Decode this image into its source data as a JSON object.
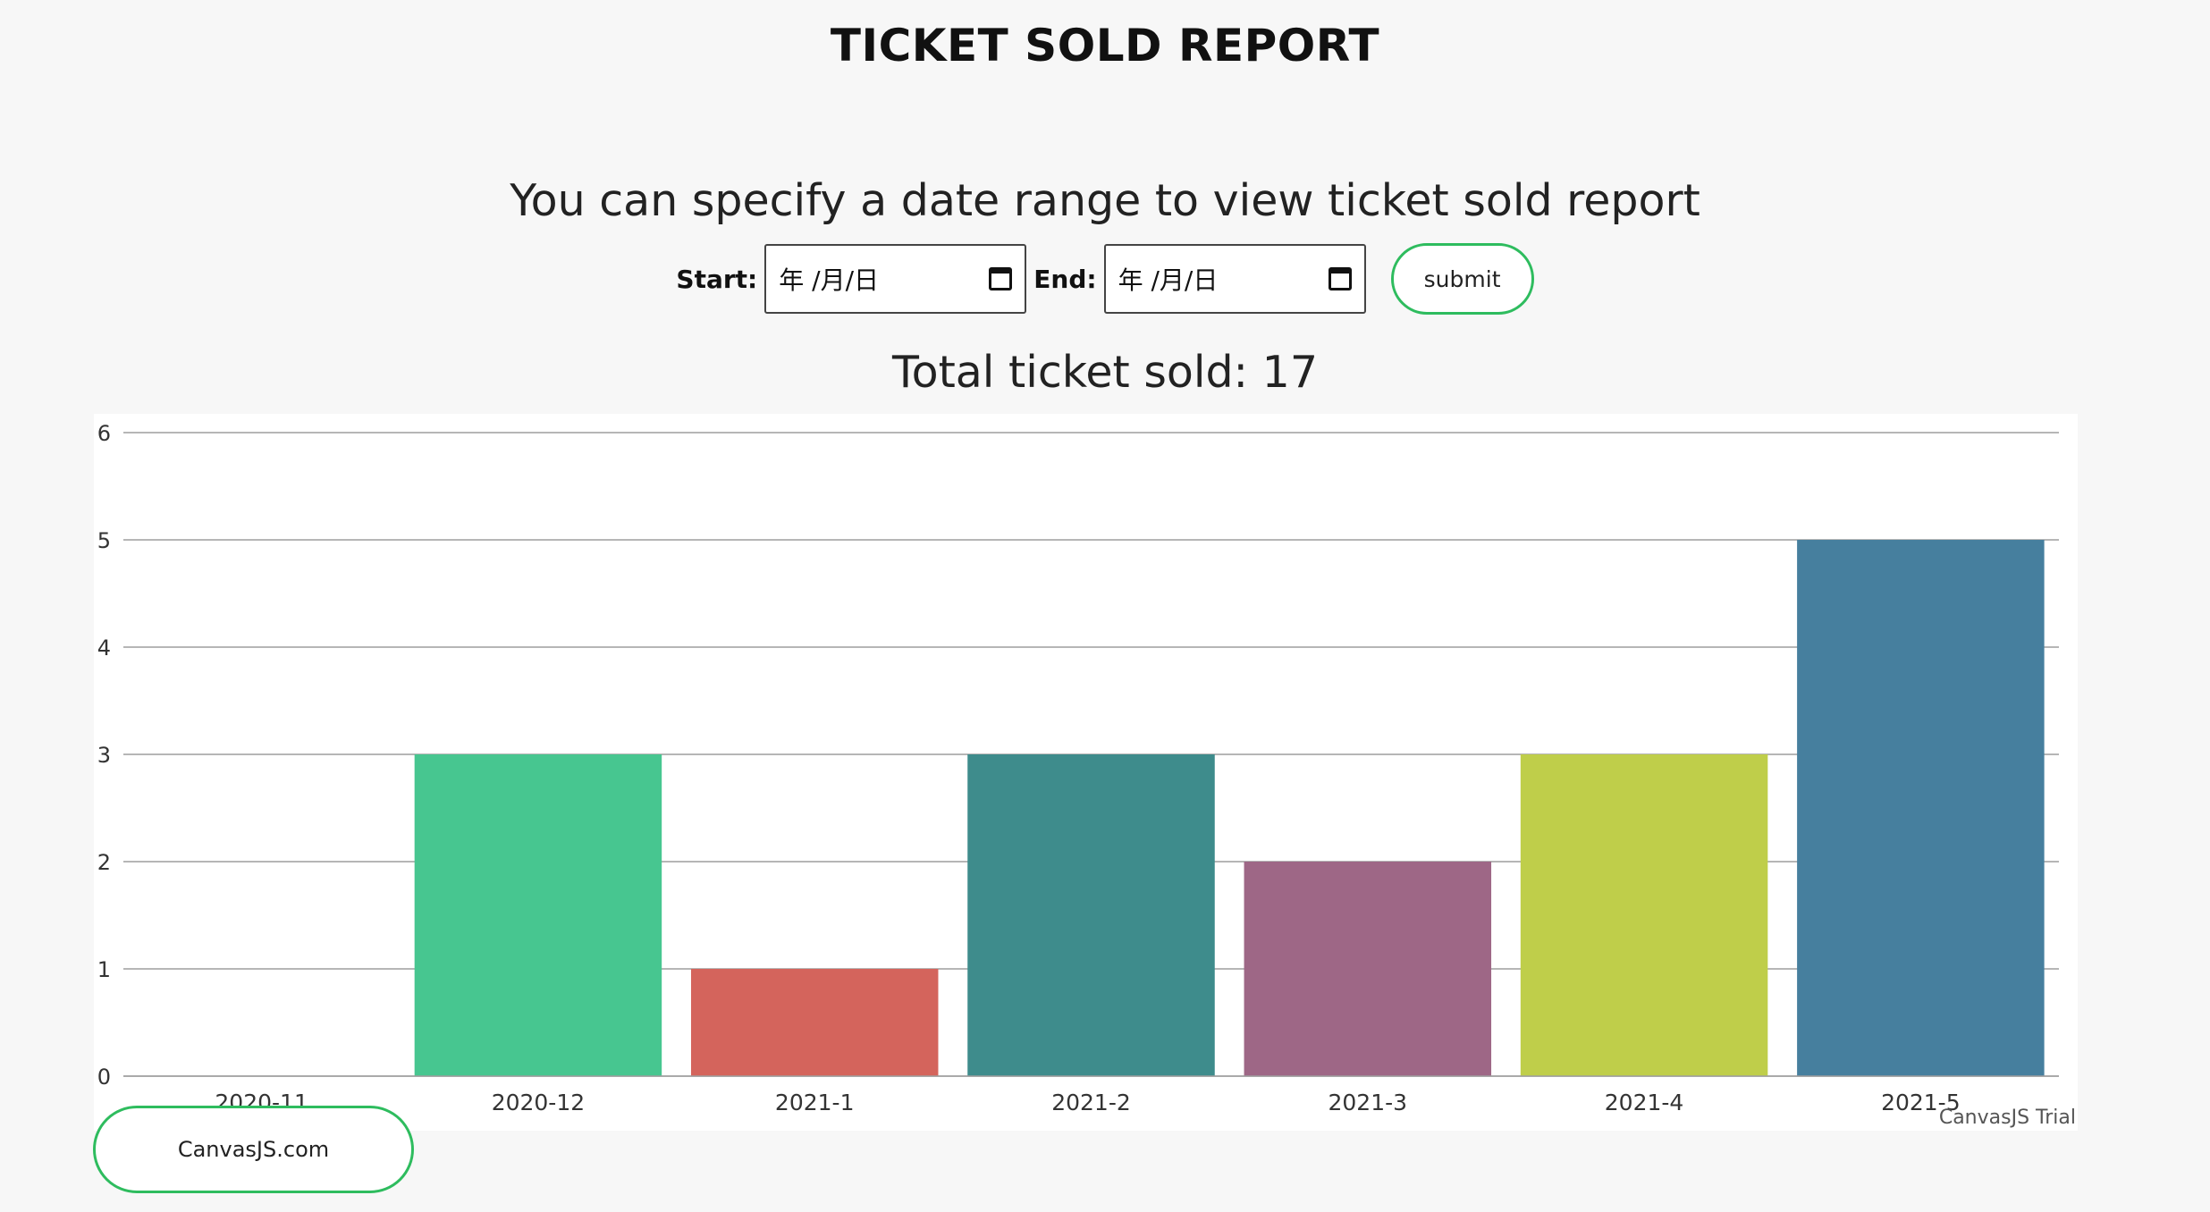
{
  "page": {
    "title": "TICKET SOLD REPORT",
    "subtitle": "You can specify a date range to view ticket sold report",
    "total_text": "Total ticket sold: 17"
  },
  "filters": {
    "start_label": "Start:",
    "start_value": "年 /月/日",
    "end_label": "End:",
    "end_value": "年 /月/日",
    "submit_label": "submit"
  },
  "chart_footer": {
    "credit_link": "CanvasJS.com",
    "watermark": "CanvasJS Trial"
  },
  "chart_data": {
    "type": "bar",
    "categories": [
      "2020-11",
      "2020-12",
      "2021-1",
      "2021-2",
      "2021-3",
      "2021-4",
      "2021-5"
    ],
    "values": [
      0,
      3,
      1,
      3,
      2,
      3,
      5
    ],
    "colors": [
      "#4F81BC",
      "#47c690",
      "#d4645c",
      "#3e8c8c",
      "#9e6786",
      "#bfce4a",
      "#467f9e"
    ],
    "ylim": [
      0,
      6
    ],
    "yticks": [
      0,
      1,
      2,
      3,
      4,
      5,
      6
    ],
    "grid": true,
    "title": "",
    "xlabel": "",
    "ylabel": ""
  }
}
